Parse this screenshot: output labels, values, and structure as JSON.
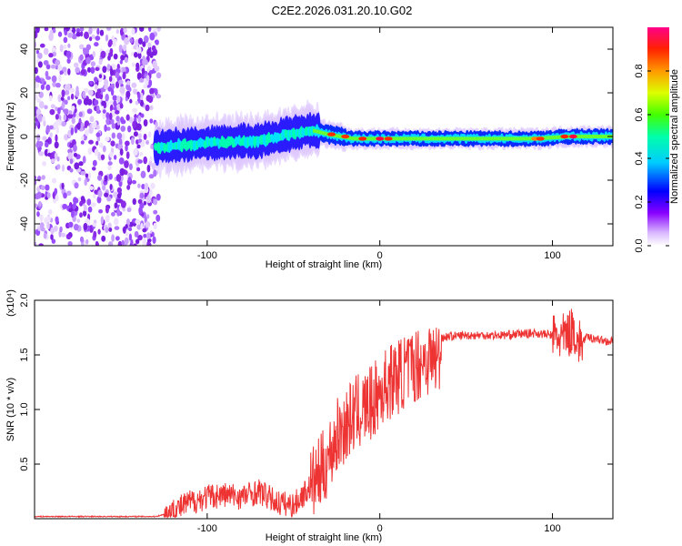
{
  "title": "C2E2.2026.031.20.10.G02",
  "chart_data": [
    {
      "type": "heatmap",
      "title": "C2E2.2026.031.20.10.G02",
      "xlabel": "Height of straight line (km)",
      "ylabel": "Frequency (Hz)",
      "xlim": [
        -200,
        135
      ],
      "ylim": [
        -50,
        50
      ],
      "x_ticks": [
        -100,
        0,
        100
      ],
      "y_ticks": [
        -40,
        -20,
        0,
        20,
        40
      ],
      "colorbar": {
        "label": "Normalized spectral amplitude",
        "range": [
          0,
          1
        ],
        "ticks": [
          0.0,
          0.2,
          0.4,
          0.6,
          0.8
        ],
        "colors": [
          "#ffffff",
          "#8800ff",
          "#0000ff",
          "#00ffff",
          "#00ff00",
          "#ffff00",
          "#ff8800",
          "#ff0000",
          "#ff0088"
        ]
      },
      "ridge": [
        {
          "x": -130,
          "freq": -5
        },
        {
          "x": -100,
          "freq": -3
        },
        {
          "x": -70,
          "freq": -2
        },
        {
          "x": -40,
          "freq": 3
        },
        {
          "x": -30,
          "freq": 1
        },
        {
          "x": -15,
          "freq": -1
        },
        {
          "x": 0,
          "freq": -1
        },
        {
          "x": 40,
          "freq": -1
        },
        {
          "x": 90,
          "freq": -1
        },
        {
          "x": 110,
          "freq": 0
        },
        {
          "x": 135,
          "freq": 0
        }
      ],
      "noise_region": {
        "x_from": -200,
        "x_to": -128
      }
    },
    {
      "type": "line",
      "xlabel": "Height of straight line (km)",
      "ylabel": "SNR (10 * v/v)",
      "y_multiplier": "(x10⁴)",
      "xlim": [
        -200,
        135
      ],
      "ylim": [
        0,
        2.0
      ],
      "x_ticks": [
        -100,
        0,
        100
      ],
      "y_ticks": [
        0.5,
        1.0,
        1.5,
        2.0
      ],
      "series": [
        {
          "name": "SNR",
          "color": "#ee3333",
          "x": [
            -200,
            -130,
            -122,
            -110,
            -100,
            -90,
            -80,
            -70,
            -60,
            -50,
            -40,
            -35,
            -30,
            -25,
            -20,
            -15,
            -10,
            -5,
            0,
            5,
            10,
            15,
            20,
            25,
            30,
            35,
            36,
            40,
            50,
            60,
            70,
            80,
            90,
            100,
            105,
            110,
            112,
            115,
            120,
            125,
            130,
            135
          ],
          "values": [
            0.02,
            0.02,
            0.05,
            0.15,
            0.2,
            0.22,
            0.2,
            0.25,
            0.15,
            0.12,
            0.3,
            0.4,
            0.55,
            0.75,
            0.85,
            0.95,
            1.0,
            1.05,
            1.15,
            1.25,
            1.3,
            1.35,
            1.4,
            1.45,
            1.47,
            1.48,
            1.66,
            1.67,
            1.68,
            1.68,
            1.68,
            1.69,
            1.7,
            1.68,
            1.65,
            1.7,
            1.75,
            1.6,
            1.66,
            1.65,
            1.63,
            1.62
          ]
        }
      ]
    }
  ]
}
